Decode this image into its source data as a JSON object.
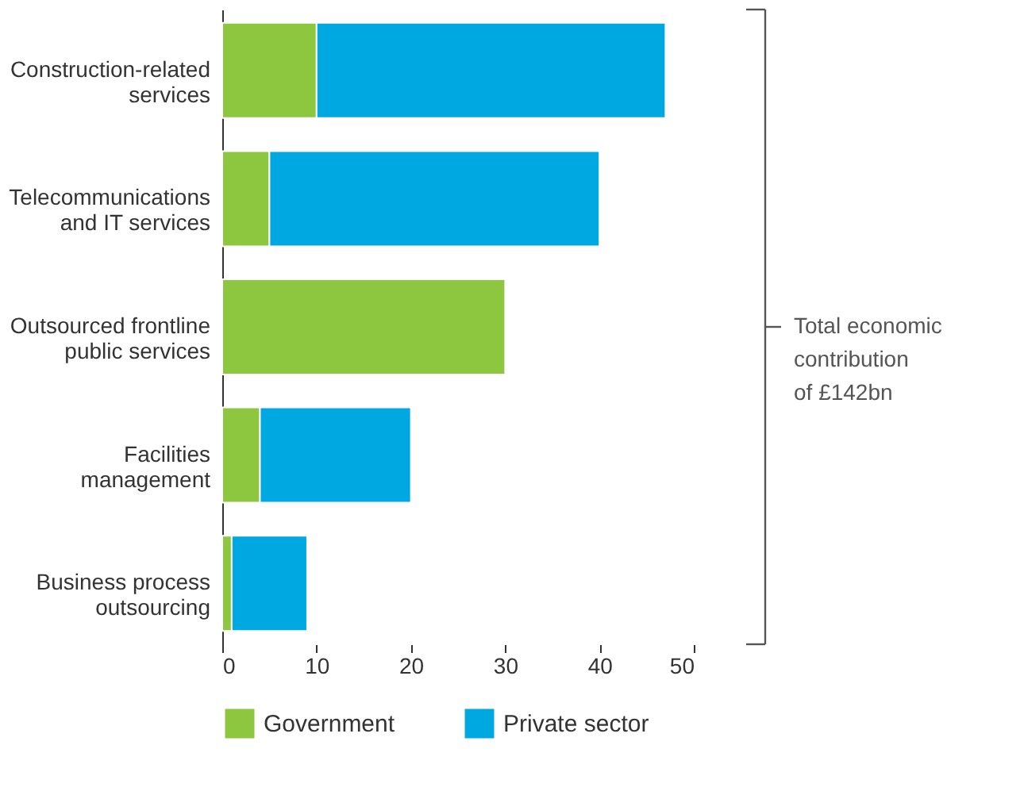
{
  "chart_data": {
    "type": "bar",
    "orientation": "horizontal",
    "stacked": true,
    "categories": [
      "Construction-related services",
      "Telecommunications and IT services",
      "Outsourced frontline public services",
      "Facilities management",
      "Business process outsourcing"
    ],
    "series": [
      {
        "name": "Government",
        "color": "#8dc63f",
        "values": [
          10,
          5,
          30,
          4,
          1
        ]
      },
      {
        "name": "Private sector",
        "color": "#00a8e1",
        "values": [
          37,
          35,
          0,
          16,
          8
        ]
      }
    ],
    "xlim": [
      0,
      50
    ],
    "xticks": [
      0,
      10,
      20,
      30,
      40,
      50
    ],
    "grid": false,
    "legend": "bottom",
    "annotations": [
      "Total economic contribution of £142bn"
    ]
  }
}
